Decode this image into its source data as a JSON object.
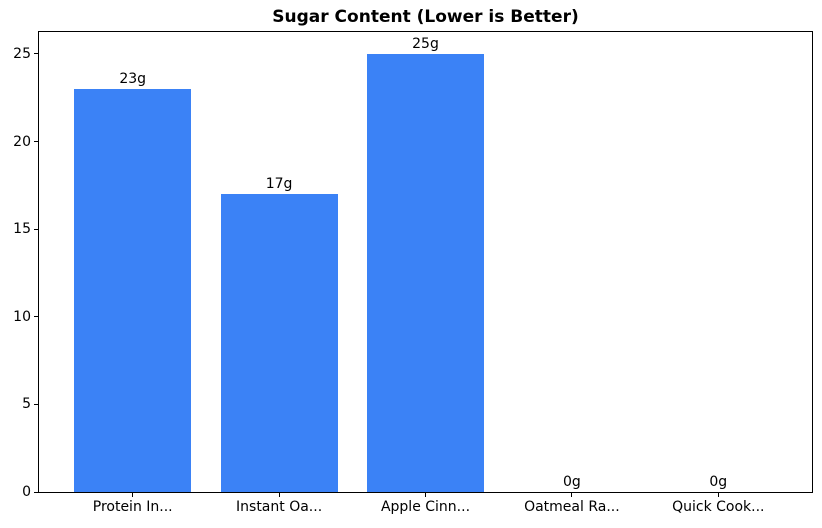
{
  "chart_data": {
    "type": "bar",
    "title": "Sugar Content (Lower is Better)",
    "categories": [
      "Protein In...",
      "Instant Oa...",
      "Apple Cinn...",
      "Oatmeal Ra...",
      "Quick Cook..."
    ],
    "values": [
      23,
      17,
      25,
      0,
      0
    ],
    "bar_labels": [
      "23g",
      "17g",
      "25g",
      "0g",
      "0g"
    ],
    "yticks": [
      0,
      5,
      10,
      15,
      20,
      25
    ],
    "ylim": [
      0,
      26.25
    ],
    "xlim": [
      -0.64,
      4.64
    ],
    "bar_width": 0.8,
    "bar_color": "#3b82f6",
    "spine_color": "#000000",
    "background_color": "#ffffff",
    "xlabel": "",
    "ylabel": "",
    "grid": false,
    "legend_position": "none"
  }
}
